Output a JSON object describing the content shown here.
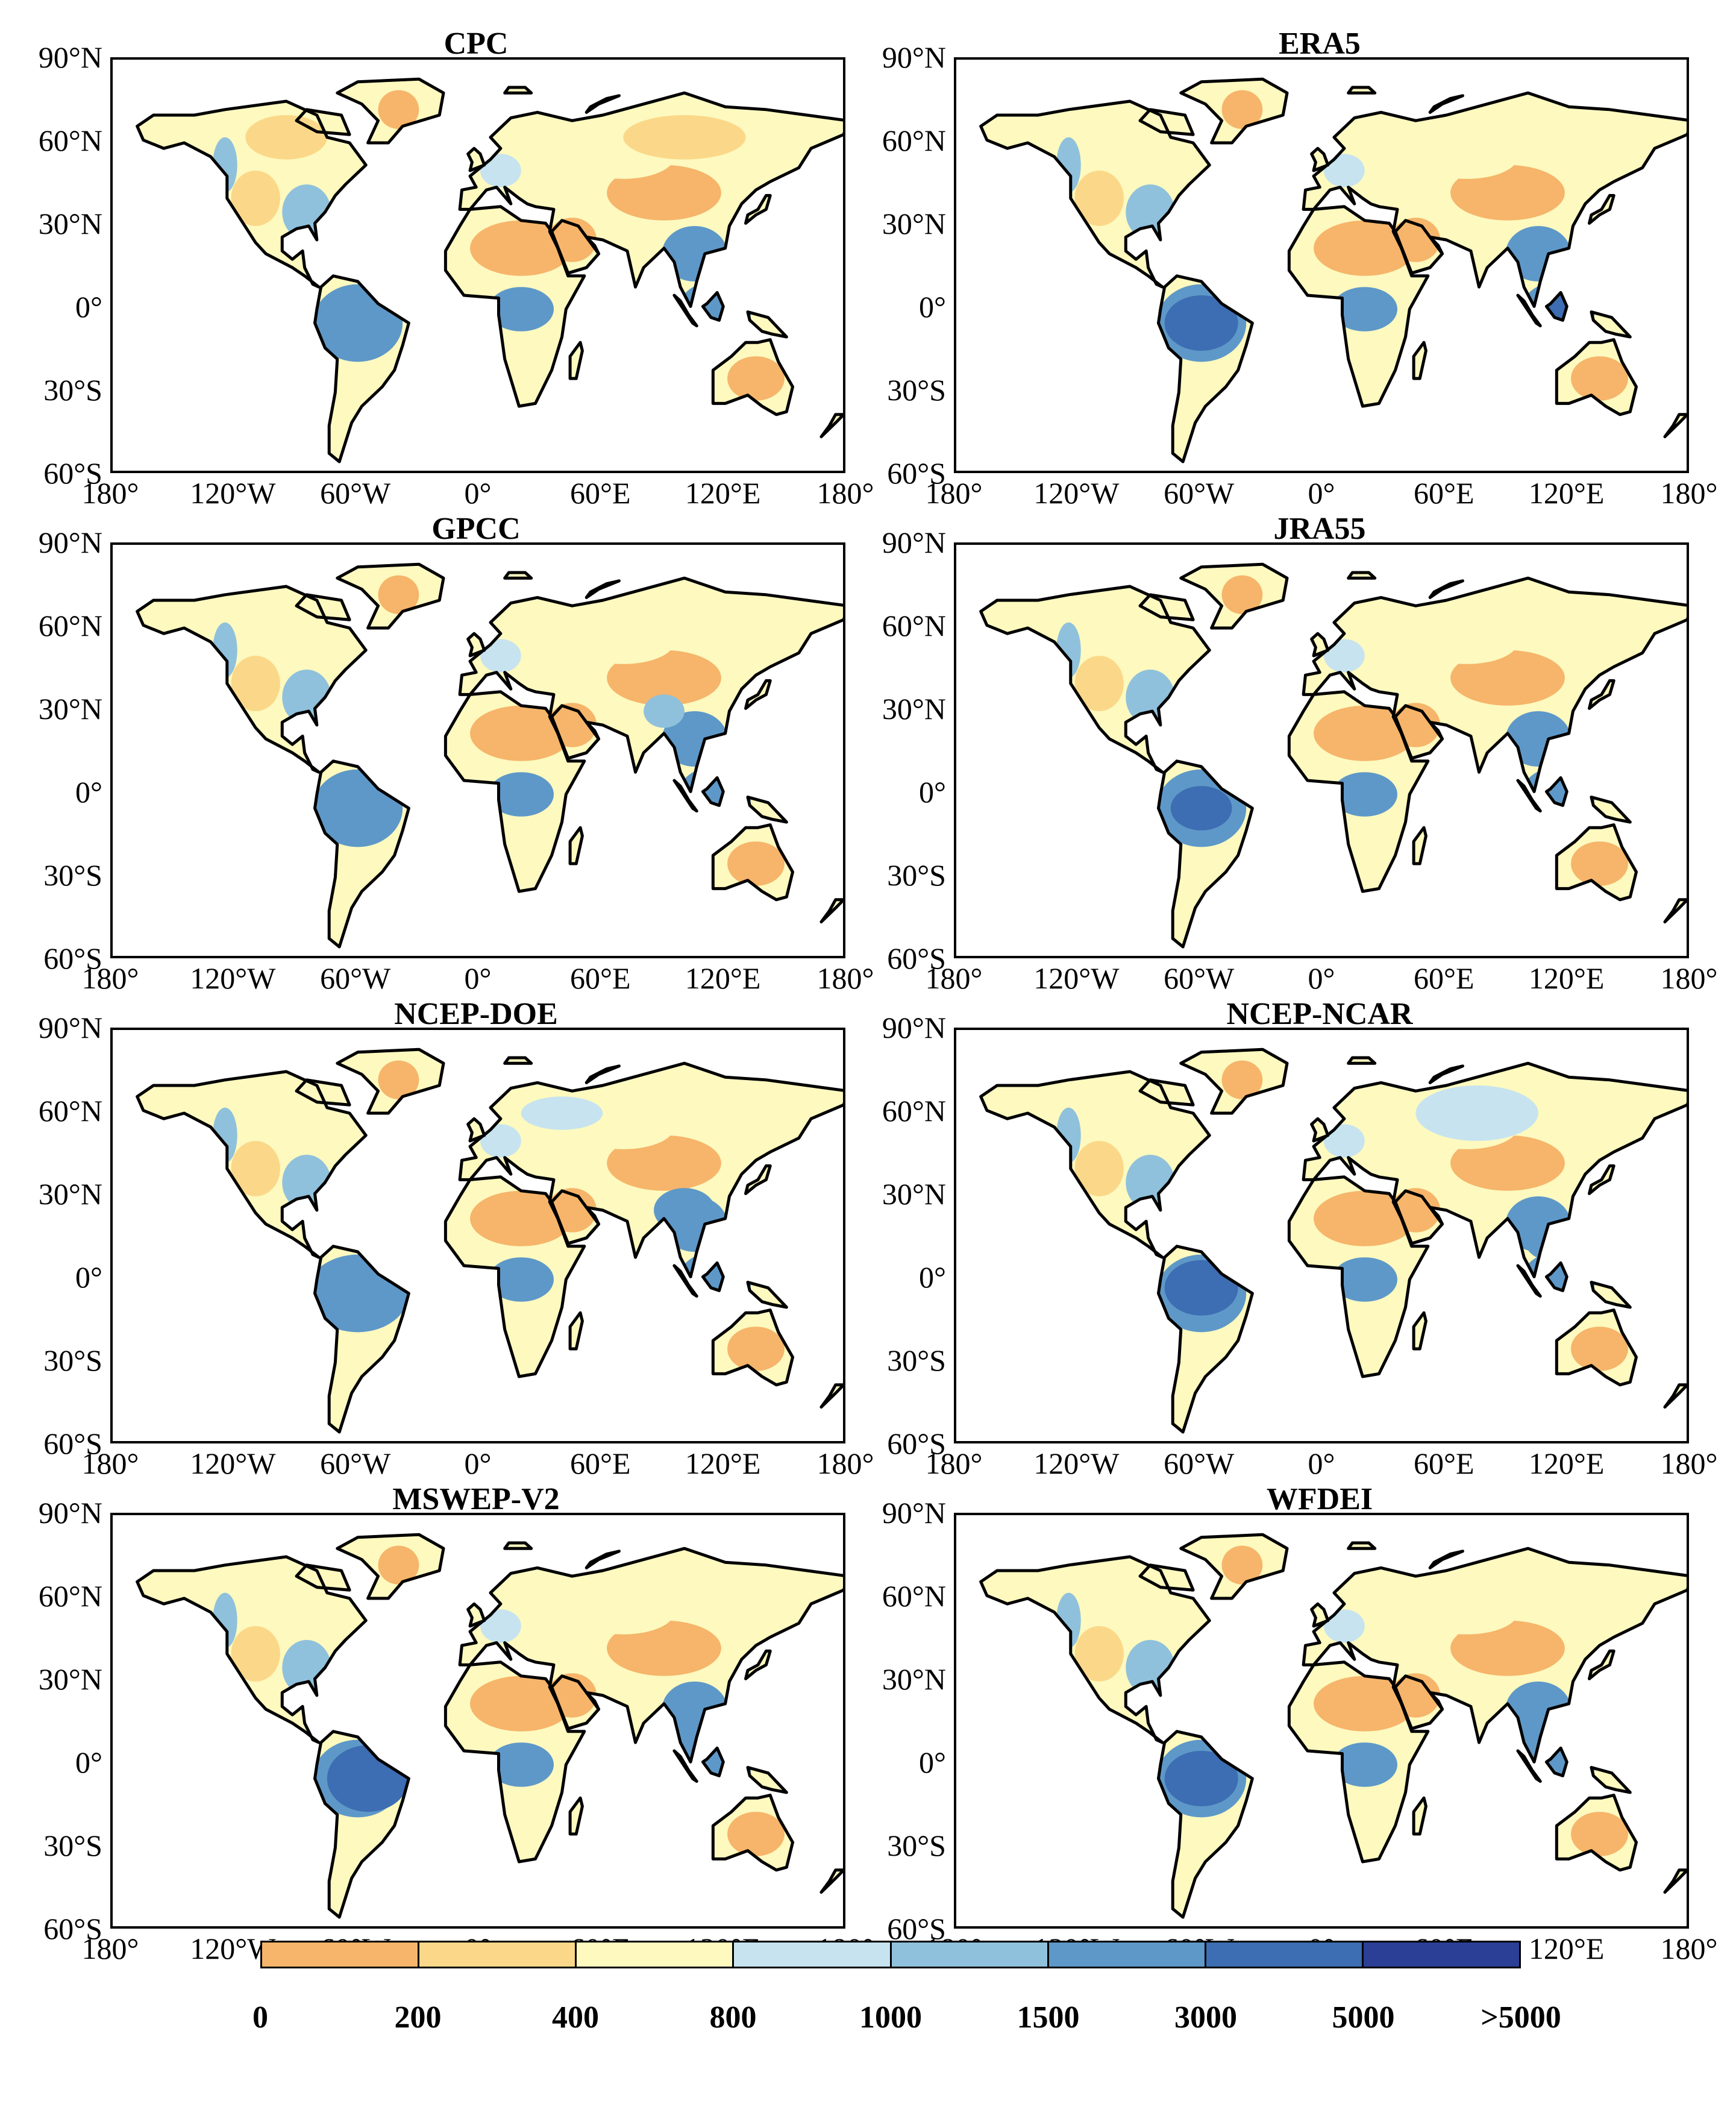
{
  "panels": [
    {
      "title": "CPC"
    },
    {
      "title": "ERA5"
    },
    {
      "title": "GPCC"
    },
    {
      "title": "JRA55"
    },
    {
      "title": "NCEP-DOE"
    },
    {
      "title": "NCEP-NCAR"
    },
    {
      "title": "MSWEP-V2"
    },
    {
      "title": "WFDEI"
    }
  ],
  "axes": {
    "lat_ticks": [
      "90°N",
      "60°N",
      "30°N",
      "0°",
      "30°S",
      "60°S"
    ],
    "lon_ticks": [
      "180°",
      "120°W",
      "60°W",
      "0°",
      "60°E",
      "120°E",
      "180°"
    ],
    "lat_range": [
      -60,
      90
    ],
    "lon_range": [
      -180,
      180
    ]
  },
  "legend": {
    "labels": [
      "0",
      "200",
      "400",
      "800",
      "1000",
      "1500",
      "3000",
      "5000",
      ">5000"
    ],
    "colors": [
      "#f6b56a",
      "#fbd889",
      "#fdf9bf",
      "#c6e3ef",
      "#8fc1dc",
      "#5e98c8",
      "#3d6db2",
      "#2c3f96"
    ]
  }
}
